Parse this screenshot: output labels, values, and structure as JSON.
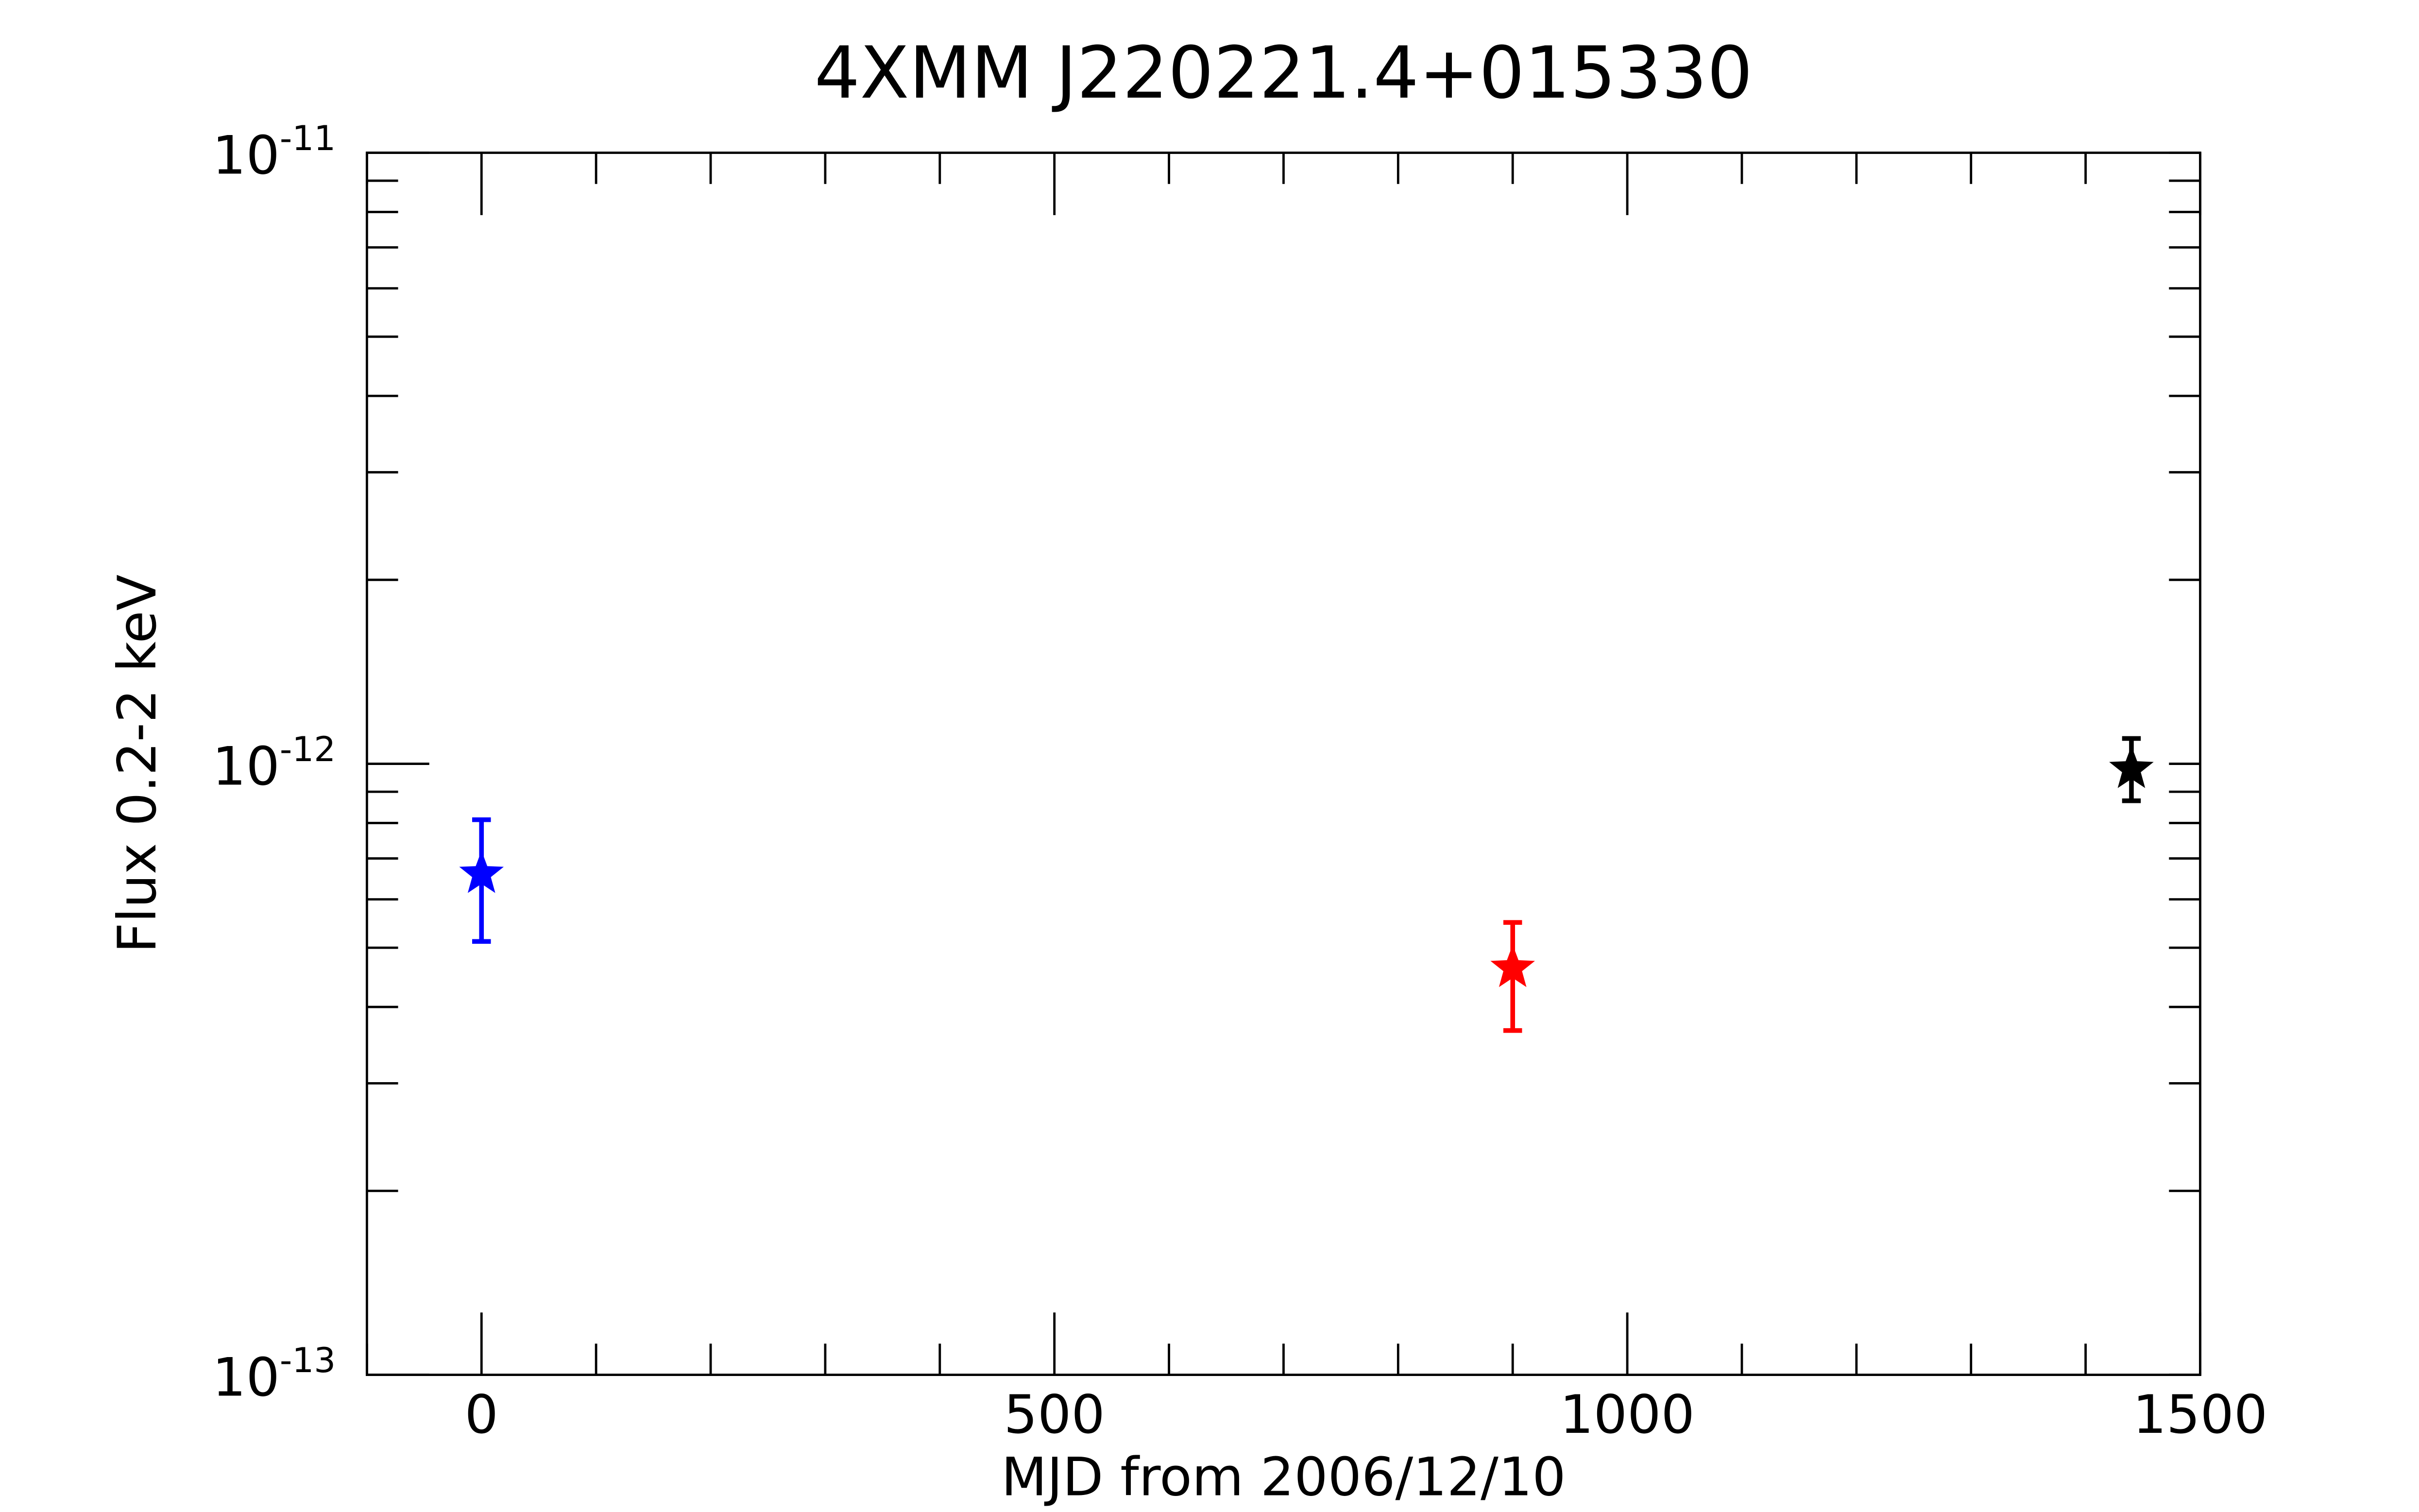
{
  "chart_data": {
    "type": "scatter",
    "title": "4XMM J220221.4+015330",
    "x_label": "MJD from 2006/12/10",
    "y_label": "Flux 0.2-2 keV",
    "x": [
      0,
      900,
      1440
    ],
    "values": [
      6.6e-13,
      4.63e-13,
      9.8e-13
    ],
    "lower": [
      5.12e-13,
      3.66e-13,
      8.7e-13
    ],
    "upper": [
      8.1e-13,
      5.5e-13,
      1.1e-12
    ],
    "colors": [
      "#0000ff",
      "#ff0000",
      "#000000"
    ],
    "xlim": [
      -100,
      1500
    ],
    "xticks": [
      0,
      500,
      1000,
      1500
    ],
    "x_minor_ticks": [
      -100,
      100,
      200,
      300,
      400,
      600,
      700,
      800,
      900,
      1100,
      1200,
      1300,
      1400
    ],
    "ylim": [
      1e-13,
      1e-11
    ],
    "yticks": [
      {
        "value": 1e-13,
        "label": "10^-13"
      },
      {
        "value": 1e-12,
        "label": "10^-12"
      },
      {
        "value": 1e-11,
        "label": "10^-11"
      }
    ],
    "y_minor_ticks": [
      2e-13,
      3e-13,
      4e-13,
      5e-13,
      6e-13,
      7e-13,
      8e-13,
      9e-13,
      2e-12,
      3e-12,
      4e-12,
      5e-12,
      6e-12,
      7e-12,
      8e-12,
      9e-12
    ],
    "y_scale": "log",
    "grid": false
  }
}
